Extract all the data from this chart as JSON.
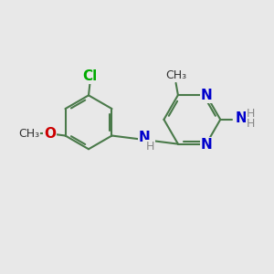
{
  "bg_color": "#e8e8e8",
  "bond_color": "#4a7a4a",
  "bond_width": 1.5,
  "atom_colors": {
    "N": "#0000cc",
    "O": "#cc0000",
    "Cl": "#00aa00",
    "C": "#333333",
    "H": "#888888"
  },
  "font_size_atom": 11,
  "font_size_h": 9,
  "font_size_label": 9
}
